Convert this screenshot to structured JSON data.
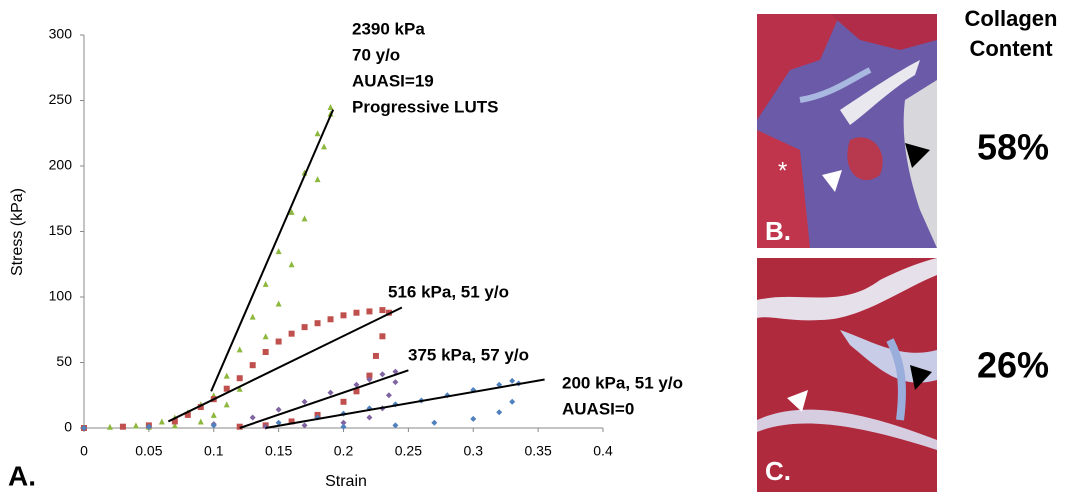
{
  "chart_data": {
    "type": "scatter",
    "xlabel": "Strain",
    "ylabel": "Stress (kPa)",
    "xlim": [
      0,
      0.4
    ],
    "xticks": [
      0,
      0.05,
      0.1,
      0.15,
      0.2,
      0.25,
      0.3,
      0.35,
      0.4
    ],
    "ylim": [
      0,
      300
    ],
    "yticks": [
      0,
      50,
      100,
      150,
      200,
      250,
      300
    ],
    "grid": false,
    "series": [
      {
        "color": "#8db83e",
        "marker": "triangle",
        "x": [
          0,
          0.02,
          0.04,
          0.06,
          0.07,
          0.08,
          0.09,
          0.1,
          0.11,
          0.12,
          0.13,
          0.14,
          0.15,
          0.16,
          0.17,
          0.18,
          0.19,
          0.19,
          0.185,
          0.18,
          0.17,
          0.16,
          0.15,
          0.14,
          0.13,
          0.12,
          0.11,
          0.1,
          0.09,
          0.07,
          0.05
        ],
        "values": [
          1,
          1,
          2,
          5,
          8,
          12,
          18,
          25,
          40,
          60,
          85,
          110,
          135,
          165,
          195,
          225,
          245,
          240,
          215,
          190,
          160,
          125,
          95,
          70,
          48,
          30,
          18,
          10,
          5,
          2,
          1
        ]
      },
      {
        "color": "#c0504d",
        "marker": "square",
        "x": [
          0,
          0.03,
          0.05,
          0.07,
          0.08,
          0.09,
          0.1,
          0.11,
          0.12,
          0.13,
          0.14,
          0.15,
          0.16,
          0.17,
          0.18,
          0.19,
          0.2,
          0.21,
          0.22,
          0.23,
          0.235,
          0.23,
          0.225,
          0.22,
          0.21,
          0.2,
          0.18,
          0.16,
          0.14,
          0.12
        ],
        "values": [
          0,
          1,
          2,
          5,
          10,
          16,
          22,
          30,
          38,
          48,
          58,
          66,
          72,
          77,
          80,
          83,
          86,
          88,
          89,
          90,
          88,
          70,
          55,
          40,
          28,
          20,
          10,
          5,
          2,
          1
        ]
      },
      {
        "color": "#8064a2",
        "marker": "diamond",
        "x": [
          0,
          0.05,
          0.1,
          0.13,
          0.15,
          0.17,
          0.19,
          0.21,
          0.22,
          0.23,
          0.24,
          0.24,
          0.235,
          0.23,
          0.22,
          0.2,
          0.17,
          0.14
        ],
        "values": [
          0,
          1,
          3,
          8,
          14,
          20,
          27,
          33,
          37,
          41,
          43,
          35,
          25,
          15,
          8,
          4,
          2,
          1
        ]
      },
      {
        "color": "#4f81bd",
        "marker": "diamond",
        "x": [
          0,
          0.05,
          0.1,
          0.15,
          0.18,
          0.2,
          0.22,
          0.24,
          0.26,
          0.28,
          0.3,
          0.32,
          0.33,
          0.335,
          0.33,
          0.32,
          0.3,
          0.27,
          0.24,
          0.2
        ],
        "values": [
          0,
          1,
          2,
          4,
          8,
          11,
          15,
          18,
          21,
          25,
          29,
          33,
          36,
          34,
          20,
          12,
          7,
          4,
          2,
          1
        ]
      }
    ],
    "fit_lines": [
      {
        "x": [
          0.098,
          0.192
        ],
        "y": [
          28,
          243
        ]
      },
      {
        "x": [
          0.065,
          0.245
        ],
        "y": [
          5,
          92
        ]
      },
      {
        "x": [
          0.12,
          0.25
        ],
        "y": [
          0,
          44
        ]
      },
      {
        "x": [
          0.14,
          0.355
        ],
        "y": [
          0,
          37
        ]
      }
    ],
    "annotations": [
      {
        "lines": [
          "2390 kPa",
          "70 y/o",
          "AUASI=19",
          "Progressive LUTS"
        ]
      },
      {
        "lines": [
          "516 kPa, 51 y/o"
        ]
      },
      {
        "lines": [
          "375 kPa, 57 y/o"
        ]
      },
      {
        "lines": [
          "200 kPa, 51 y/o",
          "AUASI=0"
        ]
      }
    ]
  },
  "figure": {
    "panel_a": "A.",
    "panel_b": "B.",
    "panel_c": "C.",
    "asterisk": "*",
    "column_header": [
      "Collagen",
      "Content"
    ],
    "collagen": [
      "58%",
      "26%"
    ]
  }
}
